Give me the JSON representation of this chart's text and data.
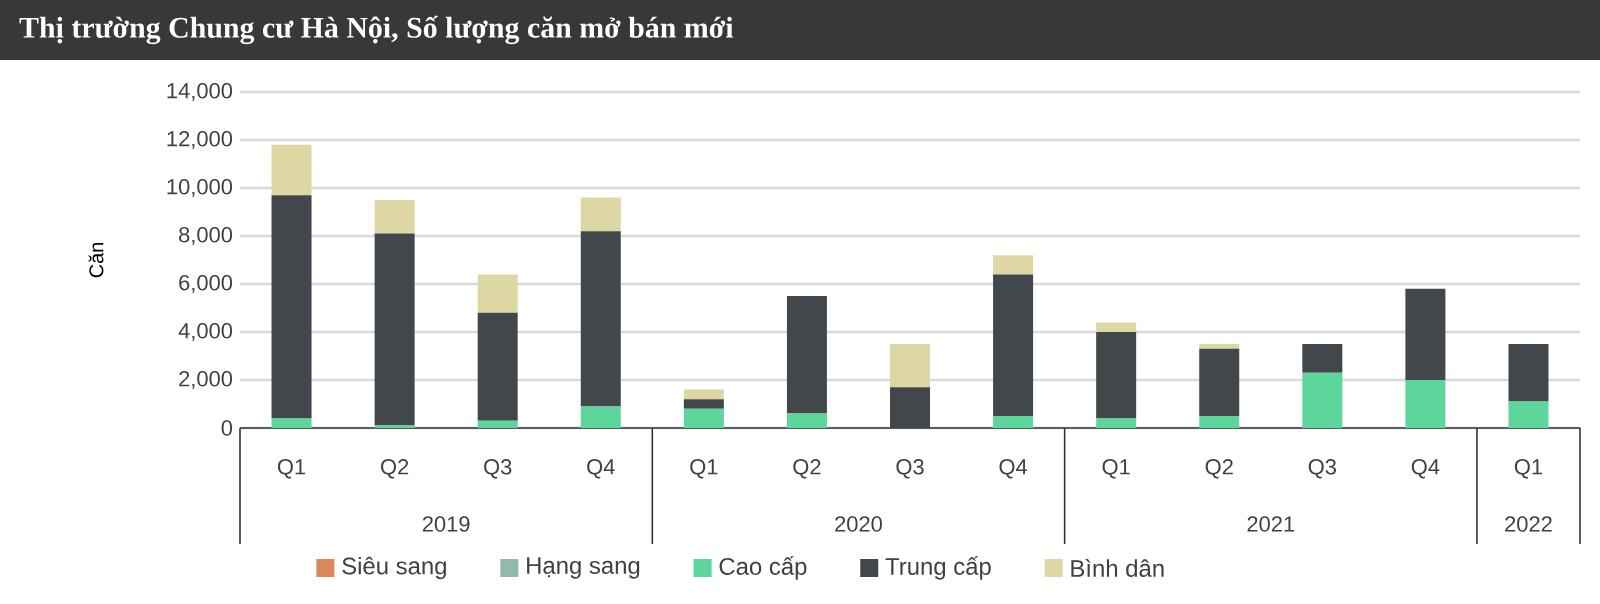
{
  "chart_data": {
    "type": "bar",
    "stacked": true,
    "title": "Thị trường Chung cư Hà Nội, Số lượng căn mở bán mới",
    "ylabel": "Căn",
    "categories": [
      "Q1",
      "Q2",
      "Q3",
      "Q4",
      "Q1",
      "Q2",
      "Q3",
      "Q4",
      "Q1",
      "Q2",
      "Q3",
      "Q4",
      "Q1"
    ],
    "annotations": [
      "2019",
      "2020",
      "2021",
      "2022"
    ],
    "series": [
      {
        "name": "Siêu sang",
        "color": "#d9895b",
        "values": [
          0,
          0,
          0,
          0,
          0,
          0,
          0,
          0,
          0,
          0,
          0,
          0,
          0
        ]
      },
      {
        "name": "Hạng sang",
        "color": "#8fbcaa",
        "values": [
          0,
          0,
          0,
          0,
          0,
          0,
          0,
          0,
          0,
          0,
          0,
          0,
          0
        ]
      },
      {
        "name": "Cao cấp",
        "color": "#5cd69a",
        "values": [
          400,
          100,
          300,
          900,
          800,
          600,
          0,
          500,
          400,
          500,
          2300,
          2000,
          1100
        ]
      },
      {
        "name": "Trung cấp",
        "color": "#41474b",
        "values": [
          9300,
          8000,
          4500,
          7300,
          400,
          4900,
          1700,
          5900,
          3600,
          2800,
          1200,
          3800,
          2400
        ]
      },
      {
        "name": "Bình dân",
        "color": "#ddd7a3",
        "values": [
          2100,
          1400,
          1600,
          1400,
          400,
          0,
          1800,
          800,
          400,
          200,
          0,
          0,
          0
        ]
      }
    ],
    "ylim": [
      0,
      14000
    ],
    "yticks": [
      {
        "value": 0,
        "label": "0"
      },
      {
        "value": 2000,
        "label": "2,000"
      },
      {
        "value": 4000,
        "label": "4,000"
      },
      {
        "value": 6000,
        "label": "6,000"
      },
      {
        "value": 8000,
        "label": "8,000"
      },
      {
        "value": 10000,
        "label": "10,000"
      },
      {
        "value": 12000,
        "label": "12,000"
      },
      {
        "value": 14000,
        "label": "14,000"
      }
    ],
    "grid": "y",
    "legend": "bottom"
  }
}
